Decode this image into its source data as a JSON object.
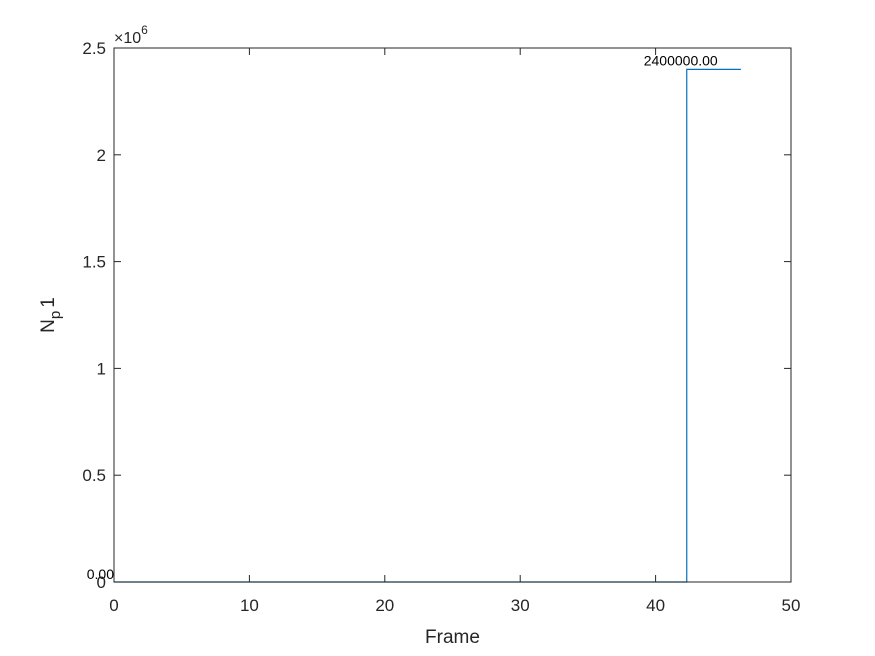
{
  "chart_data": {
    "type": "line",
    "step": true,
    "xlabel": "Frame",
    "ylabel_main": "N",
    "ylabel_sub": "p",
    "ylabel_tail": "1",
    "xlim": [
      0,
      50
    ],
    "ylim": [
      0,
      2500000
    ],
    "x_ticks": [
      0,
      10,
      20,
      30,
      40,
      50
    ],
    "y_ticks": [
      0,
      500000,
      1000000,
      1500000,
      2000000,
      2500000
    ],
    "y_tick_labels": [
      "0",
      "0.5",
      "1",
      "1.5",
      "2",
      "2.5"
    ],
    "x_tick_labels": [
      "0",
      "10",
      "20",
      "30",
      "40",
      "50"
    ],
    "y_exponent_base": "×10",
    "y_exponent_power": "6",
    "grid": false,
    "series": [
      {
        "color": "#0072BD",
        "x": [
          0,
          42.3,
          42.3,
          46.3
        ],
        "y": [
          0,
          0,
          2400000,
          2400000
        ]
      }
    ],
    "annotations": [
      {
        "text": "0.00",
        "x": 0,
        "y": 0,
        "anchor": "end"
      },
      {
        "text": "2400000.00",
        "x": 42.3,
        "y": 2400000,
        "anchor": "middle"
      }
    ]
  }
}
